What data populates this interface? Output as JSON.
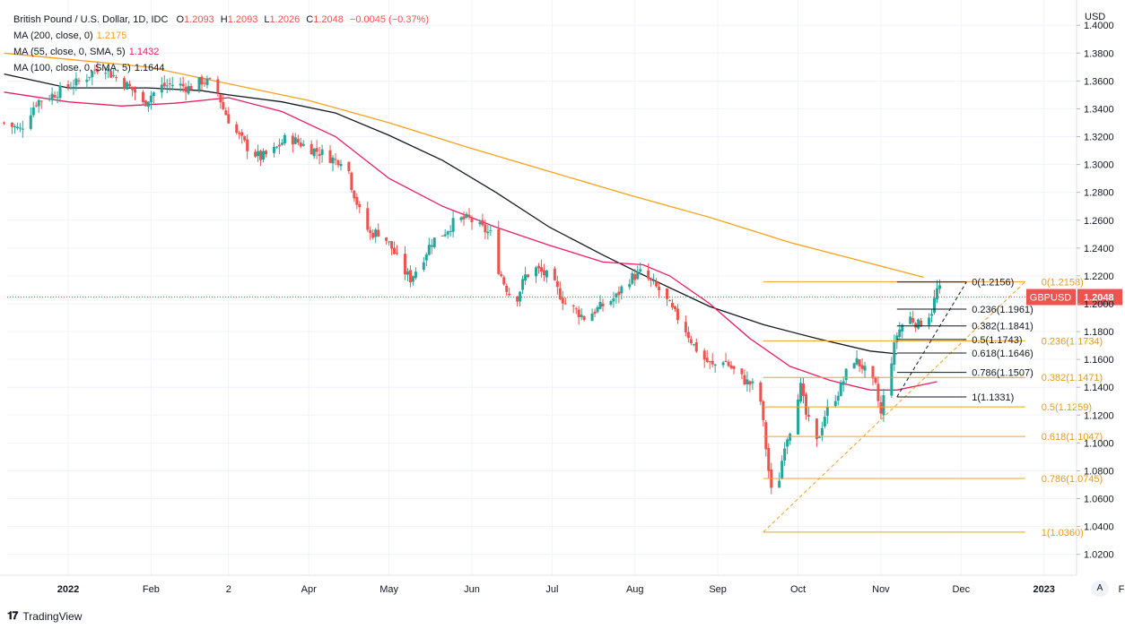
{
  "header": {
    "symbol": "British Pound / U.S. Dollar, 1D, IDC",
    "o_label": "O",
    "o_value": "1.2093",
    "h_label": "H",
    "h_value": "1.2093",
    "l_label": "L",
    "l_value": "1.2026",
    "c_label": "C",
    "c_value": "1.2048",
    "change": "−0.0045 (−0.37%)",
    "ma_rows": [
      {
        "label": "MA (200, close, 0)",
        "value": "1.2175",
        "color": "#f7a21b"
      },
      {
        "label": "MA (55, close, 0, SMA, 5)",
        "value": "1.1432",
        "color": "#e91e63"
      },
      {
        "label": "MA (100, close, 0, SMA, 5)",
        "value": "1.1644",
        "color": "#131722"
      }
    ]
  },
  "colors": {
    "up": "#26a69a",
    "down": "#ef5350",
    "ma200": "#f7a21b",
    "ma55": "#e91e63",
    "ma100": "#131722",
    "fib_orange": "#f0a020",
    "fib_black": "#131722",
    "price_tag": "#ef5350"
  },
  "branding": {
    "name": "TradingView",
    "auto_label": "A"
  },
  "price_tag": {
    "symbol": "GBPUSD",
    "value": "1.2048"
  },
  "chart_data": {
    "type": "candlestick",
    "title": "British Pound / U.S. Dollar, 1D, IDC",
    "currency_label": "USD",
    "ylim": [
      1.005,
      1.413
    ],
    "y_ticks": [
      "1.4000",
      "1.3800",
      "1.3600",
      "1.3400",
      "1.3200",
      "1.3000",
      "1.2800",
      "1.2600",
      "1.2400",
      "1.2200",
      "1.2000",
      "1.1800",
      "1.1600",
      "1.1400",
      "1.1200",
      "1.1000",
      "1.0800",
      "1.0600",
      "1.0400",
      "1.0200"
    ],
    "x_labels": [
      {
        "label": "2022",
        "day": 0,
        "bold": true
      },
      {
        "label": "Feb",
        "day": 31
      },
      {
        "label": "2",
        "day": 60
      },
      {
        "label": "Apr",
        "day": 90
      },
      {
        "label": "May",
        "day": 120
      },
      {
        "label": "Jun",
        "day": 151
      },
      {
        "label": "Jul",
        "day": 181
      },
      {
        "label": "Aug",
        "day": 212
      },
      {
        "label": "Sep",
        "day": 243
      },
      {
        "label": "Oct",
        "day": 273
      },
      {
        "label": "Nov",
        "day": 304
      },
      {
        "label": "Dec",
        "day": 334
      },
      {
        "label": "2023",
        "day": 365,
        "bold": true
      },
      {
        "label": "Feb",
        "day": 396
      }
    ],
    "price_path": [
      [
        -24,
        1.33
      ],
      [
        -18,
        1.325
      ],
      [
        -12,
        1.345
      ],
      [
        -6,
        1.35
      ],
      [
        0,
        1.356
      ],
      [
        5,
        1.36
      ],
      [
        10,
        1.368
      ],
      [
        13,
        1.372
      ],
      [
        16,
        1.365
      ],
      [
        20,
        1.36
      ],
      [
        25,
        1.352
      ],
      [
        28,
        1.343
      ],
      [
        31,
        1.35
      ],
      [
        35,
        1.356
      ],
      [
        40,
        1.358
      ],
      [
        45,
        1.355
      ],
      [
        50,
        1.36
      ],
      [
        55,
        1.358
      ],
      [
        58,
        1.34
      ],
      [
        62,
        1.325
      ],
      [
        68,
        1.31
      ],
      [
        72,
        1.305
      ],
      [
        77,
        1.31
      ],
      [
        82,
        1.32
      ],
      [
        86,
        1.316
      ],
      [
        90,
        1.312
      ],
      [
        95,
        1.308
      ],
      [
        100,
        1.303
      ],
      [
        104,
        1.305
      ],
      [
        106,
        1.285
      ],
      [
        110,
        1.26
      ],
      [
        113,
        1.25
      ],
      [
        117,
        1.252
      ],
      [
        121,
        1.24
      ],
      [
        125,
        1.225
      ],
      [
        128,
        1.218
      ],
      [
        132,
        1.23
      ],
      [
        136,
        1.245
      ],
      [
        140,
        1.25
      ],
      [
        145,
        1.26
      ],
      [
        150,
        1.261
      ],
      [
        154,
        1.255
      ],
      [
        158,
        1.25
      ],
      [
        160,
        1.23
      ],
      [
        163,
        1.215
      ],
      [
        167,
        1.2
      ],
      [
        171,
        1.22
      ],
      [
        175,
        1.225
      ],
      [
        179,
        1.22
      ],
      [
        182,
        1.213
      ],
      [
        186,
        1.2
      ],
      [
        190,
        1.195
      ],
      [
        193,
        1.19
      ],
      [
        197,
        1.195
      ],
      [
        201,
        1.2
      ],
      [
        205,
        1.205
      ],
      [
        209,
        1.217
      ],
      [
        212,
        1.22
      ],
      [
        215,
        1.223
      ],
      [
        218,
        1.215
      ],
      [
        222,
        1.208
      ],
      [
        226,
        1.195
      ],
      [
        230,
        1.185
      ],
      [
        234,
        1.17
      ],
      [
        238,
        1.16
      ],
      [
        241,
        1.155
      ],
      [
        245,
        1.16
      ],
      [
        249,
        1.152
      ],
      [
        253,
        1.145
      ],
      [
        257,
        1.14
      ],
      [
        259,
        1.13
      ],
      [
        262,
        1.08
      ],
      [
        264,
        1.05
      ],
      [
        266,
        1.075
      ],
      [
        268,
        1.1
      ],
      [
        270,
        1.11
      ],
      [
        272,
        1.13
      ],
      [
        274,
        1.14
      ],
      [
        276,
        1.12
      ],
      [
        278,
        1.11
      ],
      [
        280,
        1.1
      ],
      [
        283,
        1.12
      ],
      [
        286,
        1.13
      ],
      [
        289,
        1.14
      ],
      [
        291,
        1.15
      ],
      [
        294,
        1.16
      ],
      [
        297,
        1.155
      ],
      [
        300,
        1.145
      ],
      [
        302,
        1.14
      ],
      [
        304,
        1.12
      ],
      [
        306,
        1.145
      ],
      [
        308,
        1.16
      ],
      [
        310,
        1.178
      ],
      [
        312,
        1.185
      ],
      [
        315,
        1.19
      ],
      [
        318,
        1.185
      ],
      [
        321,
        1.19
      ],
      [
        323,
        1.195
      ],
      [
        325,
        1.21
      ],
      [
        327,
        1.2093
      ],
      [
        328,
        1.2048
      ]
    ],
    "ma_series": [
      {
        "name": "MA 200",
        "color_key": "ma200",
        "points": [
          [
            -24,
            1.38
          ],
          [
            30,
            1.37
          ],
          [
            60,
            1.358
          ],
          [
            90,
            1.346
          ],
          [
            120,
            1.33
          ],
          [
            150,
            1.312
          ],
          [
            180,
            1.295
          ],
          [
            210,
            1.278
          ],
          [
            240,
            1.262
          ],
          [
            270,
            1.244
          ],
          [
            300,
            1.229
          ],
          [
            320,
            1.219
          ]
        ]
      },
      {
        "name": "MA 100",
        "color_key": "ma100",
        "points": [
          [
            -24,
            1.365
          ],
          [
            0,
            1.355
          ],
          [
            30,
            1.355
          ],
          [
            50,
            1.353
          ],
          [
            60,
            1.35
          ],
          [
            80,
            1.345
          ],
          [
            100,
            1.337
          ],
          [
            120,
            1.321
          ],
          [
            140,
            1.303
          ],
          [
            160,
            1.28
          ],
          [
            180,
            1.255
          ],
          [
            200,
            1.235
          ],
          [
            220,
            1.216
          ],
          [
            240,
            1.198
          ],
          [
            260,
            1.185
          ],
          [
            280,
            1.175
          ],
          [
            300,
            1.166
          ],
          [
            310,
            1.164
          ]
        ]
      },
      {
        "name": "MA 55",
        "color_key": "ma55",
        "points": [
          [
            -24,
            1.352
          ],
          [
            0,
            1.345
          ],
          [
            20,
            1.342
          ],
          [
            40,
            1.344
          ],
          [
            60,
            1.348
          ],
          [
            80,
            1.338
          ],
          [
            100,
            1.32
          ],
          [
            120,
            1.29
          ],
          [
            140,
            1.27
          ],
          [
            160,
            1.255
          ],
          [
            180,
            1.242
          ],
          [
            200,
            1.23
          ],
          [
            215,
            1.228
          ],
          [
            225,
            1.22
          ],
          [
            240,
            1.2
          ],
          [
            255,
            1.175
          ],
          [
            270,
            1.155
          ],
          [
            285,
            1.145
          ],
          [
            300,
            1.138
          ],
          [
            310,
            1.138
          ],
          [
            320,
            1.142
          ],
          [
            325,
            1.144
          ]
        ]
      }
    ],
    "fib_black": {
      "x_from_day": 310,
      "x_to_day": 336,
      "label_day": 338,
      "levels": [
        {
          "label": "0(1.2156)",
          "value": 1.2156
        },
        {
          "label": "0.236(1.1961)",
          "value": 1.1961
        },
        {
          "label": "0.382(1.1841)",
          "value": 1.1841
        },
        {
          "label": "0.5(1.1743)",
          "value": 1.1743
        },
        {
          "label": "0.618(1.1646)",
          "value": 1.1646
        },
        {
          "label": "0.786(1.1507)",
          "value": 1.1507
        },
        {
          "label": "1(1.1331)",
          "value": 1.1331
        }
      ],
      "trend": {
        "from_day": 310,
        "from_value": 1.1331,
        "to_day": 336,
        "to_value": 1.2156
      }
    },
    "fib_orange": {
      "x_from_day": 260,
      "x_to_day": 358,
      "label_day": 364,
      "levels": [
        {
          "label": "0(1.2158)",
          "value": 1.2158
        },
        {
          "label": "0.236(1.1734)",
          "value": 1.1734
        },
        {
          "label": "0.382(1.1471)",
          "value": 1.1471
        },
        {
          "label": "0.5(1.1259)",
          "value": 1.1259
        },
        {
          "label": "0.618(1.1047)",
          "value": 1.1047
        },
        {
          "label": "0.786(1.0745)",
          "value": 1.0745
        },
        {
          "label": "1(1.0360)",
          "value": 1.036
        }
      ],
      "trend": {
        "from_day": 260,
        "from_value": 1.036,
        "to_day": 358,
        "to_value": 1.2158
      }
    }
  }
}
